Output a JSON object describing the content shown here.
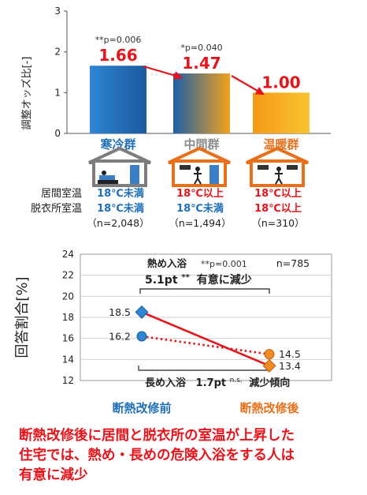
{
  "chart_data": [
    {
      "type": "bar",
      "ylabel": "調整オッズ比[-]",
      "ylim": [
        0,
        3
      ],
      "yticks": [
        0,
        1,
        2,
        3
      ],
      "categories": [
        "寒冷群",
        "中間群",
        "温暖群"
      ],
      "category_colors": [
        "#1f6fb8",
        "#8c8c8c",
        "#e8701a"
      ],
      "values": [
        1.66,
        1.47,
        1.0
      ],
      "value_labels": [
        "1.66",
        "1.47",
        "1.00"
      ],
      "p_labels": [
        {
          "prefix": "**",
          "text": "p=0.006"
        },
        {
          "prefix": "*",
          "text": "p=0.040"
        },
        {
          "prefix": "",
          "text": ""
        }
      ],
      "bar_gradients": [
        [
          "#2e86d4",
          "#1b5a9e"
        ],
        [
          "#1e5fa8",
          "#f2a11d"
        ],
        [
          "#f59a17",
          "#f7c431"
        ]
      ],
      "conditions": {
        "row_labels": [
          "居間室温",
          "脱衣所室温"
        ],
        "groups": [
          {
            "living": "18℃未満",
            "dressing": "18℃未満",
            "n": "（n=2,048）",
            "color": "#1f6fb8",
            "house": "gray"
          },
          {
            "living": "18℃以上",
            "dressing": "18℃未満",
            "n": "（n=1,494）",
            "living_color": "#e8141b",
            "dressing_color": "#1f6fb8",
            "house": "orange"
          },
          {
            "living": "18℃以上",
            "dressing": "18℃以上",
            "n": "（n=310）",
            "color": "#e8141b",
            "house": "orange"
          }
        ]
      }
    },
    {
      "type": "line",
      "ylabel": "回答割合[%]",
      "ylim": [
        12,
        24
      ],
      "yticks": [
        12,
        14,
        16,
        18,
        20,
        22,
        24
      ],
      "categories": [
        "断熱改修前",
        "断熱改修後"
      ],
      "category_colors": [
        "#1f6fb8",
        "#e8701a"
      ],
      "series": [
        {
          "name": "熱め入浴",
          "values": [
            18.5,
            13.4
          ],
          "labels": [
            "18.5",
            "13.4"
          ],
          "style": "solid"
        },
        {
          "name": "長め入浴",
          "values": [
            16.2,
            14.5
          ],
          "labels": [
            "16.2",
            "14.5"
          ],
          "style": "dotted"
        }
      ],
      "annotations": {
        "top_title": "熱め入浴",
        "top_p": "**p=0.001",
        "n": "n=785",
        "top_change_value": "5.1pt",
        "top_change_mark": "**",
        "top_change_text": "有意に減少",
        "bottom_title": "長め入浴",
        "bottom_change_value": "1.7pt",
        "bottom_change_mark": "n.s.",
        "bottom_change_text": "減少傾向"
      }
    }
  ],
  "conclusion": {
    "lines": [
      "断熱改修後に居間と脱衣所の室温が上昇した",
      "住宅では、熱め・長めの危険入浴をする人は",
      "有意に減少"
    ]
  },
  "colors": {
    "red": "#e8141b",
    "blue": "#1f6fb8",
    "orange": "#e8701a",
    "gray": "#8c8c8c"
  }
}
